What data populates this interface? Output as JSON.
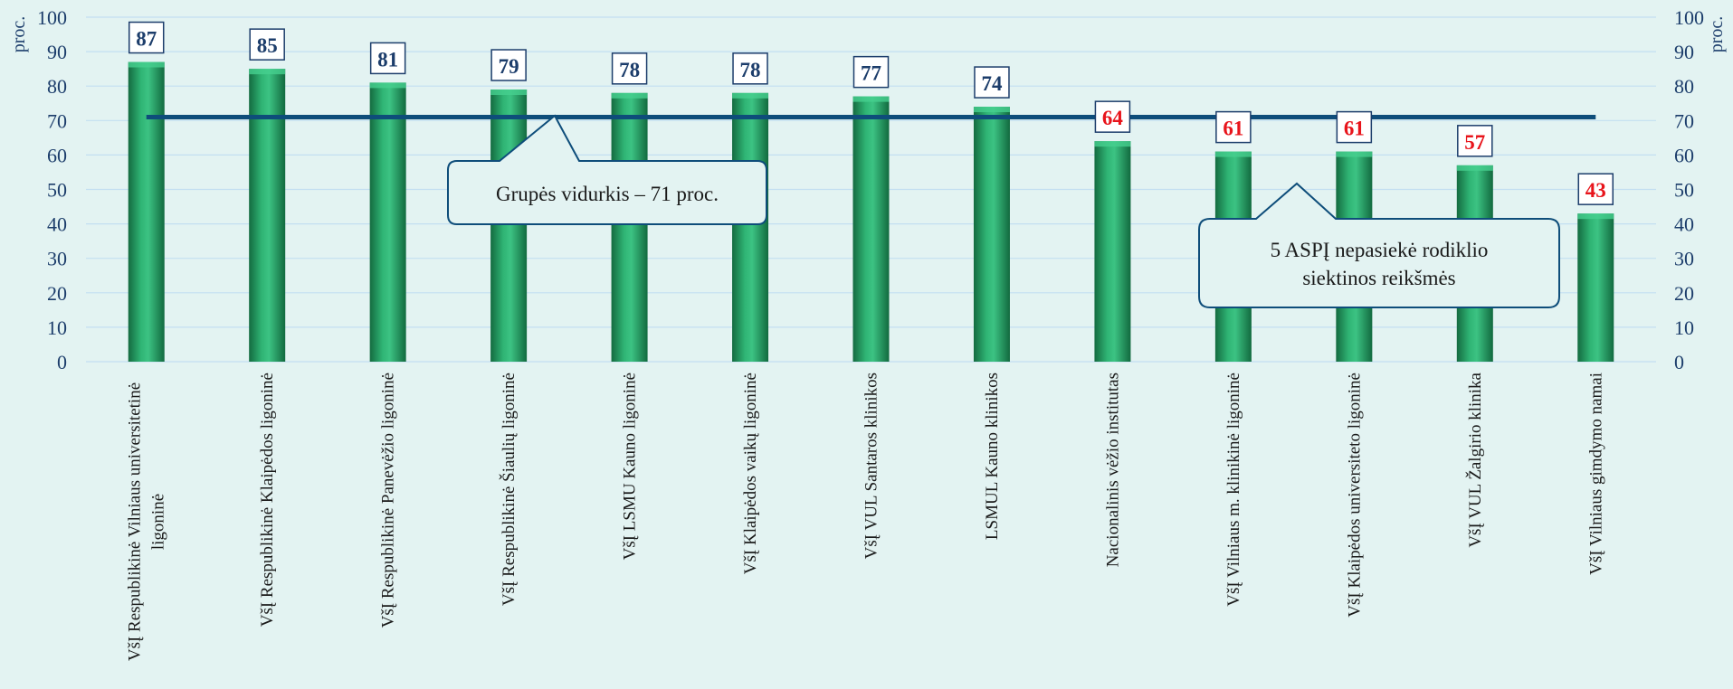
{
  "chart_data": {
    "type": "bar",
    "y_unit_label": "proc.",
    "ylim": [
      0,
      100
    ],
    "yticks": [
      0,
      10,
      20,
      30,
      40,
      50,
      60,
      70,
      80,
      90,
      100
    ],
    "categories": [
      [
        "VšĮ Respublikinė Vilniaus universitetinė",
        "ligoninė"
      ],
      [
        "VšĮ Respublikinė Klaipėdos ligoninė"
      ],
      [
        "VšĮ Respublikinė Panevėžio ligoninė"
      ],
      [
        "VšĮ Respublikinė Šiaulių ligoninė"
      ],
      [
        "VšĮ LSMU Kauno ligoninė"
      ],
      [
        "VšĮ Klaipėdos vaikų ligoninė"
      ],
      [
        "VšĮ VUL Santaros klinikos"
      ],
      [
        "LSMUL Kauno klinikos"
      ],
      [
        "Nacionalinis vėžio institutas"
      ],
      [
        "VšĮ Vilniaus m. klinikinė ligoninė"
      ],
      [
        "VšĮ Klaipėdos universiteto ligoninė"
      ],
      [
        "VšĮ VUL Žalgirio klinika"
      ],
      [
        "VšĮ Vilniaus gimdymo namai"
      ]
    ],
    "values": [
      87,
      85,
      81,
      79,
      78,
      78,
      77,
      74,
      64,
      61,
      61,
      57,
      43
    ],
    "average": 71,
    "label_colors": {
      "above": "#1c3d6b",
      "below": "#e8141b"
    },
    "colors": {
      "bar": "#2aa56a",
      "line": "#0e4d7a",
      "axis_text": "#1c3d6b"
    },
    "grid": true,
    "annotations": [
      {
        "id": "avg",
        "lines": [
          "Grupės vidurkis – 71 proc."
        ]
      },
      {
        "id": "below",
        "lines": [
          "5 ASPĮ nepasiekė rodiklio",
          "siektinos reikšmės"
        ]
      }
    ]
  }
}
